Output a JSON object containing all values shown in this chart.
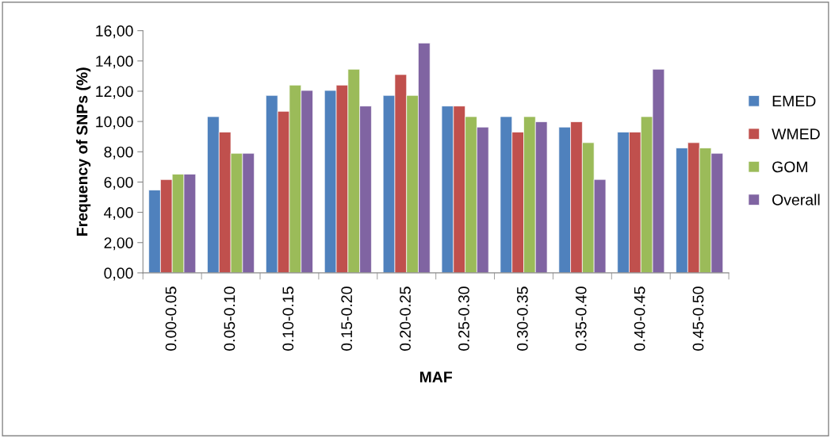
{
  "chart_data": {
    "type": "bar",
    "xlabel": "MAF",
    "ylabel": "Frequency of SNPs (%)",
    "categories": [
      "0.00-0.05",
      "0.05-0.10",
      "0.10-0.15",
      "0.15-0.20",
      "0.20-0.25",
      "0.25-0.30",
      "0.30-0.35",
      "0.35-0.40",
      "0.40-0.45",
      "0.45-0.50"
    ],
    "series": [
      {
        "name": "EMED",
        "color": "#4f81bd",
        "values": [
          5.47,
          10.32,
          11.72,
          12.05,
          11.72,
          11.02,
          10.32,
          9.63,
          9.3,
          8.25
        ]
      },
      {
        "name": "WMED",
        "color": "#c0504d",
        "values": [
          6.16,
          9.3,
          10.67,
          12.4,
          13.1,
          11.02,
          9.3,
          9.98,
          9.3,
          8.6
        ]
      },
      {
        "name": "GOM",
        "color": "#9bbb59",
        "values": [
          6.52,
          7.9,
          12.4,
          13.45,
          11.72,
          10.32,
          10.32,
          8.6,
          10.32,
          8.25
        ]
      },
      {
        "name": "Overall",
        "color": "#8064a2",
        "values": [
          6.52,
          7.9,
          12.05,
          11.02,
          15.18,
          9.63,
          9.98,
          6.17,
          13.45,
          7.9
        ]
      }
    ],
    "ylim": [
      0,
      16
    ],
    "yticks": [
      {
        "value": 0,
        "label": "0,00"
      },
      {
        "value": 2,
        "label": "2,00"
      },
      {
        "value": 4,
        "label": "4,00"
      },
      {
        "value": 6,
        "label": "6,00"
      },
      {
        "value": 8,
        "label": "8,00"
      },
      {
        "value": 10,
        "label": "10,00"
      },
      {
        "value": 12,
        "label": "12,00"
      },
      {
        "value": 14,
        "label": "14,00"
      },
      {
        "value": 16,
        "label": "16,00"
      }
    ],
    "grid": false,
    "legend": "right"
  }
}
